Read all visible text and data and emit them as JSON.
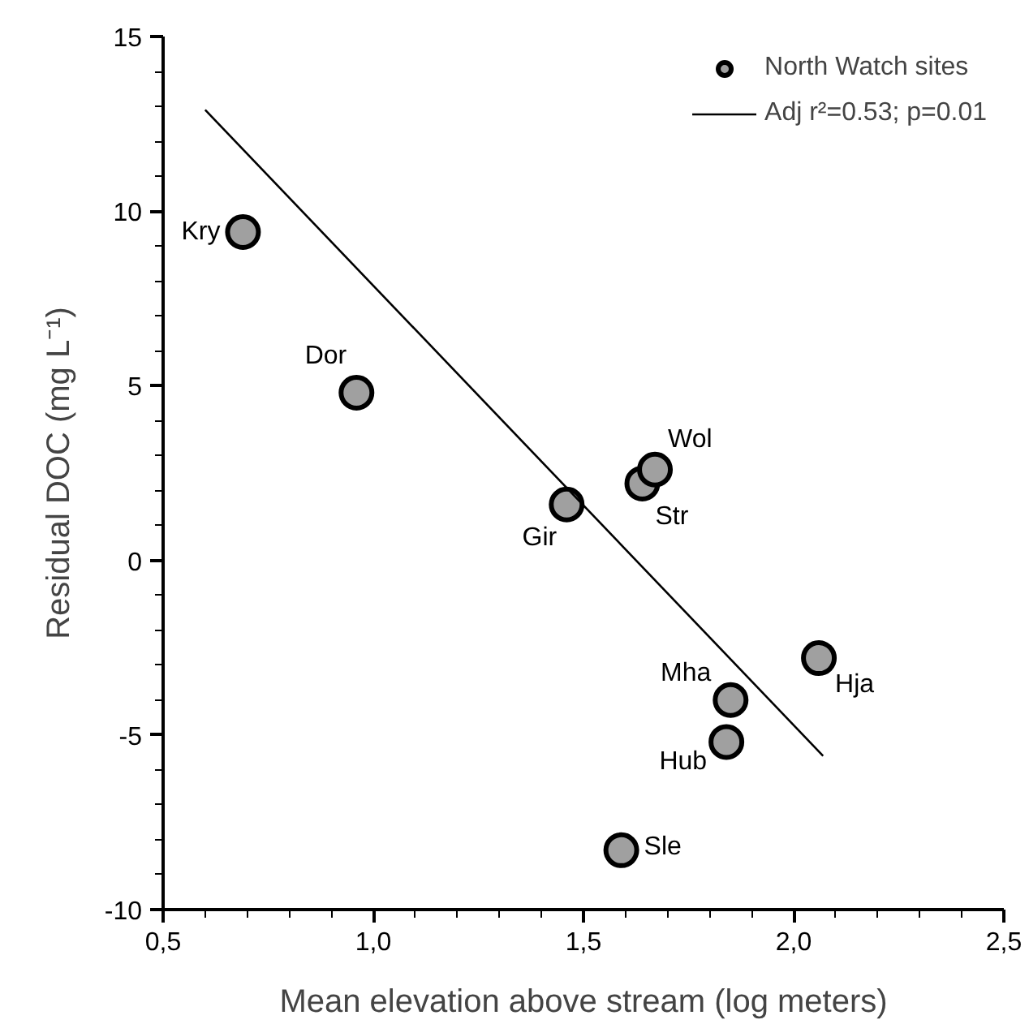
{
  "chart_data": {
    "type": "scatter",
    "xlabel": "Mean elevation above stream (log meters)",
    "ylabel": "Residual DOC (mg L⁻¹)",
    "xlim": [
      0.5,
      2.5
    ],
    "ylim": [
      -10,
      15
    ],
    "xticks": [
      {
        "value": 0.5,
        "label": "0,5"
      },
      {
        "value": 1.0,
        "label": "1,0"
      },
      {
        "value": 1.5,
        "label": "1,5"
      },
      {
        "value": 2.0,
        "label": "2,0"
      },
      {
        "value": 2.5,
        "label": "2,5"
      },
      {
        "value": 0.6,
        "label": null
      },
      {
        "value": 0.7,
        "label": null
      },
      {
        "value": 0.8,
        "label": null
      },
      {
        "value": 0.9,
        "label": null
      },
      {
        "value": 1.1,
        "label": null
      },
      {
        "value": 1.2,
        "label": null
      },
      {
        "value": 1.3,
        "label": null
      },
      {
        "value": 1.4,
        "label": null
      },
      {
        "value": 1.6,
        "label": null
      },
      {
        "value": 1.7,
        "label": null
      },
      {
        "value": 1.8,
        "label": null
      },
      {
        "value": 1.9,
        "label": null
      },
      {
        "value": 2.1,
        "label": null
      },
      {
        "value": 2.2,
        "label": null
      },
      {
        "value": 2.3,
        "label": null
      },
      {
        "value": 2.4,
        "label": null
      }
    ],
    "yticks": [
      -10,
      -5,
      0,
      5,
      10,
      15,
      {
        "value": -9,
        "label": null
      },
      {
        "value": -8,
        "label": null
      },
      {
        "value": -7,
        "label": null
      },
      {
        "value": -6,
        "label": null
      },
      {
        "value": -4,
        "label": null
      },
      {
        "value": -3,
        "label": null
      },
      {
        "value": -2,
        "label": null
      },
      {
        "value": -1,
        "label": null
      },
      {
        "value": 1,
        "label": null
      },
      {
        "value": 2,
        "label": null
      },
      {
        "value": 3,
        "label": null
      },
      {
        "value": 4,
        "label": null
      },
      {
        "value": 6,
        "label": null
      },
      {
        "value": 7,
        "label": null
      },
      {
        "value": 8,
        "label": null
      },
      {
        "value": 9,
        "label": null
      },
      {
        "value": 11,
        "label": null
      },
      {
        "value": 12,
        "label": null
      },
      {
        "value": 13,
        "label": null
      },
      {
        "value": 14,
        "label": null
      }
    ],
    "grid": false,
    "legend": "top right",
    "series": [
      {
        "name": "North Watch sites",
        "marker": "circle",
        "color": "#a0a0a0",
        "x": [
          0.69,
          0.96,
          1.46,
          1.64,
          1.67,
          1.85,
          1.84,
          2.06,
          1.59
        ],
        "values": [
          9.4,
          4.8,
          1.6,
          2.2,
          2.6,
          -4.0,
          -5.2,
          -2.8,
          -8.3
        ]
      },
      {
        "name": "Adj r²=0.53; p=0.01",
        "type": "line",
        "color": "#000000",
        "line_style": "solid",
        "x": [
          0.6,
          2.07
        ],
        "values": [
          12.9,
          -5.6
        ]
      }
    ],
    "annotations": [
      {
        "text": "Kry",
        "x": 0.69,
        "y": 9.4
      },
      {
        "text": "Dor",
        "x": 0.96,
        "y": 4.8
      },
      {
        "text": "Gir",
        "x": 1.46,
        "y": 1.6
      },
      {
        "text": "Str",
        "x": 1.64,
        "y": 2.2
      },
      {
        "text": "Wol",
        "x": 1.67,
        "y": 2.6
      },
      {
        "text": "Mha",
        "x": 1.85,
        "y": -4.0
      },
      {
        "text": "Hub",
        "x": 1.84,
        "y": -5.2
      },
      {
        "text": "Hja",
        "x": 2.06,
        "y": -2.8
      },
      {
        "text": "Sle",
        "x": 1.59,
        "y": -8.3
      }
    ]
  }
}
